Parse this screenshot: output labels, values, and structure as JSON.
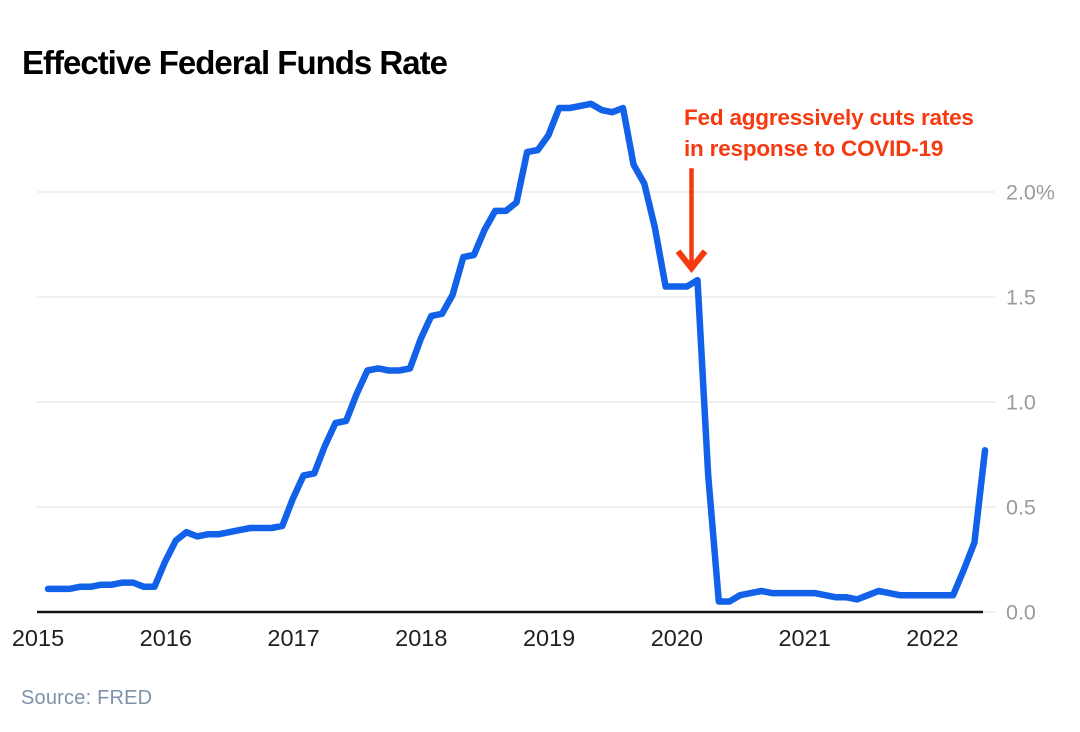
{
  "header": {
    "title": "Effective Federal Funds Rate"
  },
  "footer": {
    "source": "Source: FRED"
  },
  "annotation": {
    "lines": [
      "Fed aggressively cuts rates",
      "in response to COVID-19"
    ],
    "arrow_month_index": 61,
    "arrow_value": 1.58
  },
  "colors": {
    "line": "#1161e9",
    "annotation": "#f53a10",
    "grid": "#ebebeb",
    "axis": "#141414",
    "y_tick_label": "#9b9b9b",
    "x_tick_label": "#212121",
    "source": "#7e93a9",
    "title": "#000000"
  },
  "chart_data": {
    "type": "line",
    "title": "Effective Federal Funds Rate",
    "source": "Source: FRED",
    "series_name": "Effective Federal Funds Rate (%)",
    "frequency": "monthly",
    "x_start": "2015-01",
    "x_end": "2022-05",
    "values": [
      0.11,
      0.11,
      0.11,
      0.12,
      0.12,
      0.13,
      0.13,
      0.14,
      0.14,
      0.12,
      0.12,
      0.24,
      0.34,
      0.38,
      0.36,
      0.37,
      0.37,
      0.38,
      0.39,
      0.4,
      0.4,
      0.4,
      0.41,
      0.54,
      0.65,
      0.66,
      0.79,
      0.9,
      0.91,
      1.04,
      1.15,
      1.16,
      1.15,
      1.15,
      1.16,
      1.3,
      1.41,
      1.42,
      1.51,
      1.69,
      1.7,
      1.82,
      1.91,
      1.91,
      1.95,
      2.19,
      2.2,
      2.27,
      2.4,
      2.4,
      2.41,
      2.42,
      2.39,
      2.38,
      2.4,
      2.13,
      2.04,
      1.83,
      1.55,
      1.55,
      1.55,
      1.58,
      0.65,
      0.05,
      0.05,
      0.08,
      0.09,
      0.1,
      0.09,
      0.09,
      0.09,
      0.09,
      0.09,
      0.08,
      0.07,
      0.07,
      0.06,
      0.08,
      0.1,
      0.09,
      0.08,
      0.08,
      0.08,
      0.08,
      0.08,
      0.08,
      0.2,
      0.33,
      0.77
    ],
    "x_ticks": [
      2015,
      2016,
      2017,
      2018,
      2019,
      2020,
      2021,
      2022
    ],
    "y_ticks": [
      {
        "value": 2.0,
        "label": "2.0%"
      },
      {
        "value": 1.5,
        "label": "1.5"
      },
      {
        "value": 1.0,
        "label": "1.0"
      },
      {
        "value": 0.5,
        "label": "0.5"
      },
      {
        "value": 0.0,
        "label": "0.0"
      }
    ],
    "ylim": [
      0,
      2.5
    ],
    "grid": "horizontal",
    "y_axis_side": "right",
    "legend": "none"
  }
}
